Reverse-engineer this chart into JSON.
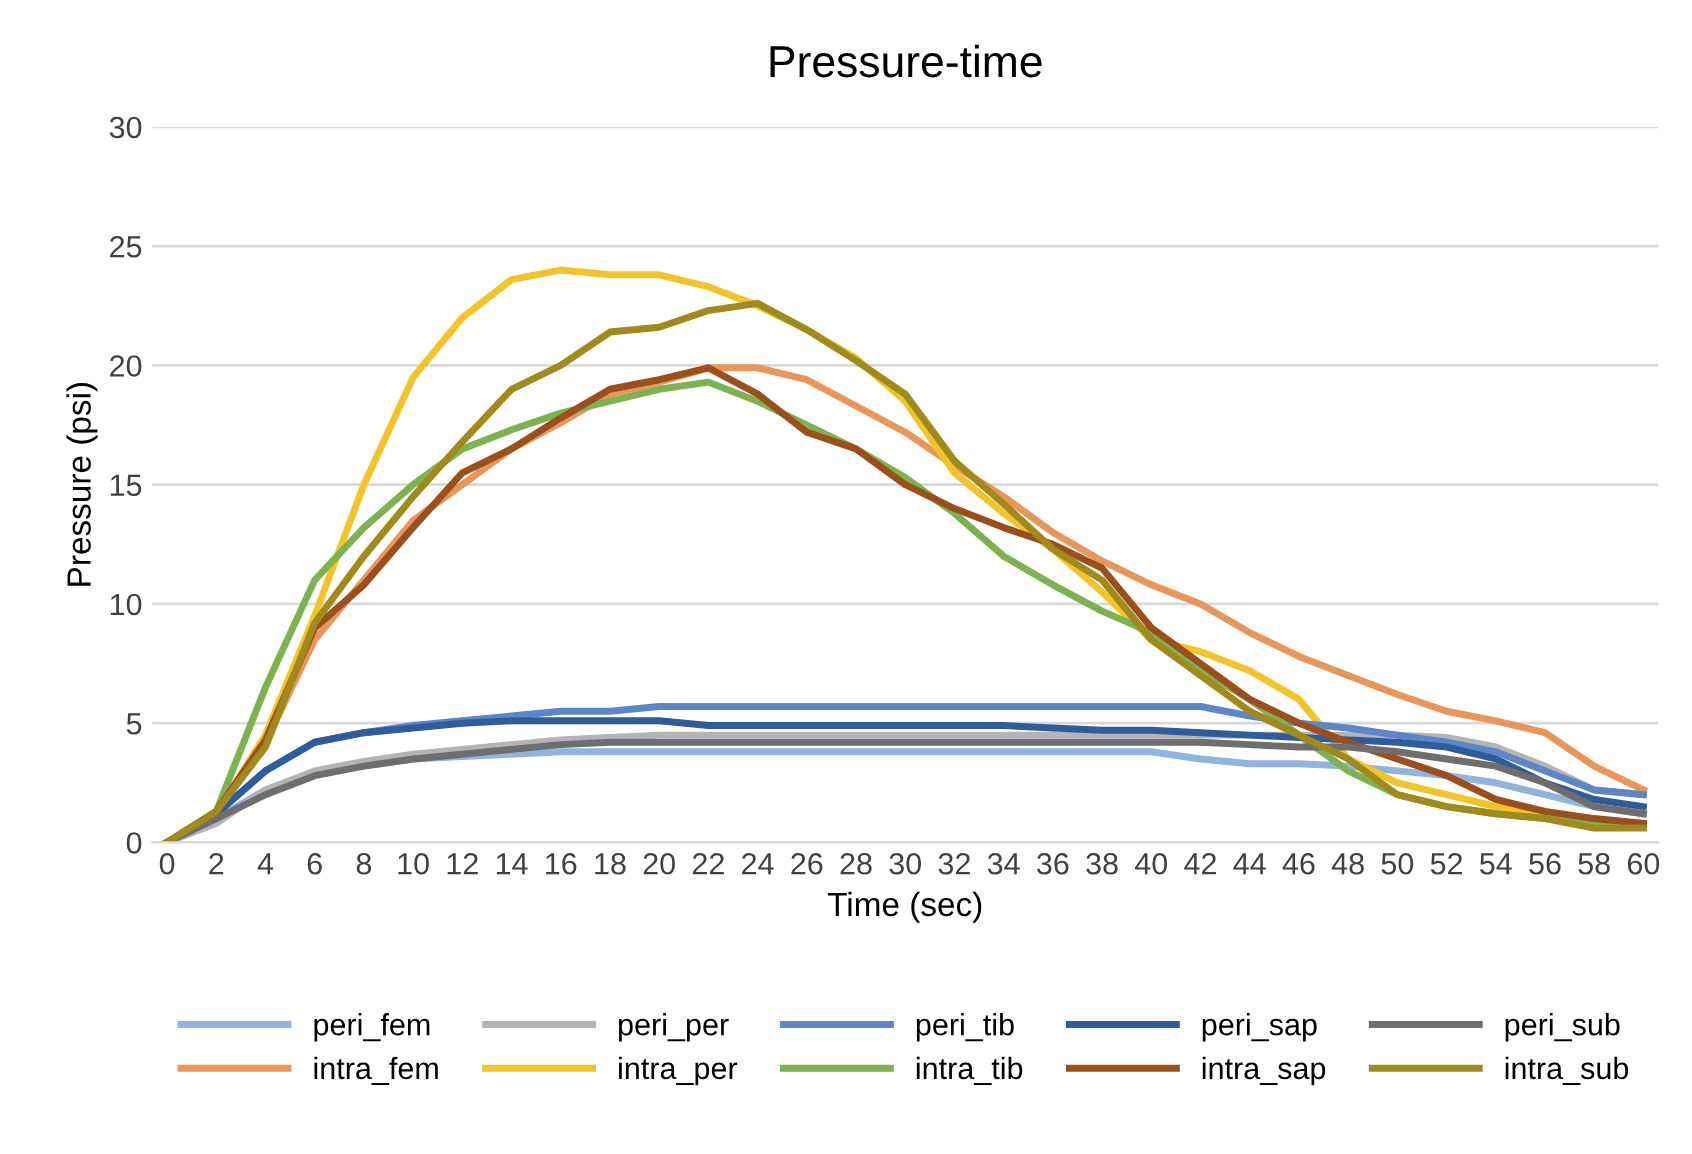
{
  "chart_data": {
    "type": "line",
    "title": "Pressure-time",
    "xlabel": "Time (sec)",
    "ylabel": "Pressure (psi)",
    "categories": [
      "0",
      "2",
      "4",
      "6",
      "8",
      "10",
      "12",
      "14",
      "16",
      "18",
      "20",
      "22",
      "24",
      "26",
      "28",
      "30",
      "32",
      "34",
      "36",
      "38",
      "40",
      "42",
      "44",
      "46",
      "48",
      "50",
      "52",
      "54",
      "56",
      "58",
      "60"
    ],
    "ylim": [
      0,
      30
    ],
    "yticks": [
      0,
      5,
      10,
      15,
      20,
      25,
      30
    ],
    "grid": "y",
    "legend": "bottom",
    "marker": "none",
    "line_style": "solid",
    "series": [
      {
        "name": "peri_fem",
        "color": "#8fb4e0",
        "values": [
          0,
          1,
          2.2,
          2.9,
          3.2,
          3.5,
          3.6,
          3.7,
          3.8,
          3.8,
          3.8,
          3.8,
          3.8,
          3.8,
          3.8,
          3.8,
          3.8,
          3.8,
          3.8,
          3.8,
          3.8,
          3.5,
          3.3,
          3.3,
          3.2,
          3,
          2.8,
          2.5,
          2,
          1.5,
          1.2
        ]
      },
      {
        "name": "intra_fem",
        "color": "#e8975a",
        "values": [
          0,
          1.3,
          4.2,
          8.5,
          11,
          13.5,
          15,
          16.5,
          17.6,
          18.8,
          19.3,
          19.9,
          19.9,
          19.4,
          18.3,
          17.2,
          15.8,
          14.5,
          13,
          11.8,
          10.8,
          10,
          8.8,
          7.8,
          7,
          6.2,
          5.5,
          5.1,
          4.6,
          3.2,
          2.2
        ]
      },
      {
        "name": "peri_per",
        "color": "#b4b4b4",
        "values": [
          0,
          0.8,
          2.2,
          3,
          3.4,
          3.7,
          3.9,
          4.1,
          4.3,
          4.4,
          4.5,
          4.5,
          4.5,
          4.5,
          4.5,
          4.5,
          4.5,
          4.5,
          4.5,
          4.5,
          4.5,
          4.5,
          4.5,
          4.5,
          4.5,
          4.5,
          4.4,
          4,
          3.2,
          2.2,
          2
        ]
      },
      {
        "name": "intra_per",
        "color": "#f2c42a",
        "values": [
          0,
          1.2,
          4.5,
          9.5,
          15,
          19.5,
          22,
          23.6,
          24,
          23.8,
          23.8,
          23.3,
          22.5,
          21.5,
          20.3,
          18.5,
          15.5,
          13.8,
          12.3,
          10.5,
          8.5,
          8,
          7.2,
          6,
          3.5,
          2.5,
          2,
          1.5,
          1.2,
          0.8,
          0.8
        ]
      },
      {
        "name": "peri_tib",
        "color": "#5b86c9",
        "values": [
          0,
          1.2,
          3,
          4.2,
          4.6,
          4.9,
          5.1,
          5.3,
          5.5,
          5.5,
          5.7,
          5.7,
          5.7,
          5.7,
          5.7,
          5.7,
          5.7,
          5.7,
          5.7,
          5.7,
          5.7,
          5.7,
          5.3,
          5,
          4.8,
          4.5,
          4.2,
          3.8,
          3,
          2.2,
          2
        ]
      },
      {
        "name": "intra_tib",
        "color": "#7cb350",
        "values": [
          0,
          1.3,
          6.5,
          11,
          13.2,
          15,
          16.5,
          17.3,
          18,
          18.5,
          19,
          19.3,
          18.5,
          17.5,
          16.5,
          15.3,
          13.8,
          12,
          10.8,
          9.7,
          8.8,
          7.2,
          6,
          4.5,
          3,
          2,
          1.5,
          1.2,
          1,
          0.8,
          0.7
        ]
      },
      {
        "name": "peri_sap",
        "color": "#2f5d9c",
        "values": [
          0,
          1.2,
          3,
          4.2,
          4.6,
          4.8,
          5,
          5.1,
          5.1,
          5.1,
          5.1,
          4.9,
          4.9,
          4.9,
          4.9,
          4.9,
          4.9,
          4.9,
          4.8,
          4.7,
          4.7,
          4.6,
          4.5,
          4.4,
          4.3,
          4.2,
          4,
          3.5,
          2.5,
          1.8,
          1.5
        ]
      },
      {
        "name": "intra_sap",
        "color": "#9a4f1c",
        "values": [
          0,
          1.3,
          4.3,
          9,
          10.8,
          13.2,
          15.5,
          16.5,
          17.8,
          19,
          19.4,
          19.9,
          18.8,
          17.2,
          16.5,
          15,
          14,
          13.2,
          12.5,
          11.5,
          9,
          7.5,
          6,
          5,
          4.2,
          3.5,
          2.8,
          1.8,
          1.3,
          1,
          0.8
        ]
      },
      {
        "name": "peri_sub",
        "color": "#6e6e6e",
        "values": [
          0,
          1,
          2,
          2.8,
          3.2,
          3.5,
          3.7,
          3.9,
          4.1,
          4.2,
          4.2,
          4.2,
          4.2,
          4.2,
          4.2,
          4.2,
          4.2,
          4.2,
          4.2,
          4.2,
          4.2,
          4.2,
          4.1,
          4,
          4,
          3.8,
          3.5,
          3.2,
          2.5,
          1.5,
          1.2
        ]
      },
      {
        "name": "intra_sub",
        "color": "#a18a1c",
        "values": [
          0,
          1.3,
          4,
          9.2,
          12,
          14.5,
          16.8,
          19,
          20,
          21.4,
          21.6,
          22.3,
          22.6,
          21.5,
          20.2,
          18.8,
          16,
          14.2,
          12.3,
          11,
          8.5,
          7,
          5.5,
          4.5,
          3.5,
          2,
          1.5,
          1.2,
          1,
          0.6,
          0.6
        ]
      }
    ]
  }
}
